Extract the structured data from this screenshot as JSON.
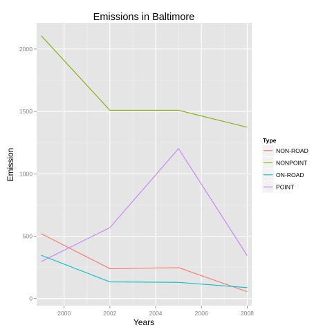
{
  "chart_data": {
    "type": "line",
    "title": "Emissions in Baltimore",
    "xlabel": "Years",
    "ylabel": "Emission",
    "xlim": [
      1998.8,
      2008.2
    ],
    "ylim": [
      -57,
      2210
    ],
    "x_ticks": [
      2000,
      2002,
      2004,
      2006,
      2008
    ],
    "y_ticks": [
      0,
      500,
      1000,
      1500,
      2000
    ],
    "grid": true,
    "legend": {
      "title": "Type",
      "position": "right"
    },
    "x": [
      1999,
      2002,
      2005,
      2008
    ],
    "series": [
      {
        "name": "NON-ROAD",
        "color": "#F8766D",
        "values": [
          520,
          240,
          248,
          55
        ]
      },
      {
        "name": "NONPOINT",
        "color": "#7CAE00",
        "values": [
          2107,
          1509,
          1509,
          1373
        ]
      },
      {
        "name": "ON-ROAD",
        "color": "#00BFC4",
        "values": [
          347,
          134,
          130,
          88
        ]
      },
      {
        "name": "POINT",
        "color": "#C77CFF",
        "values": [
          297,
          569,
          1202,
          345
        ]
      }
    ]
  }
}
